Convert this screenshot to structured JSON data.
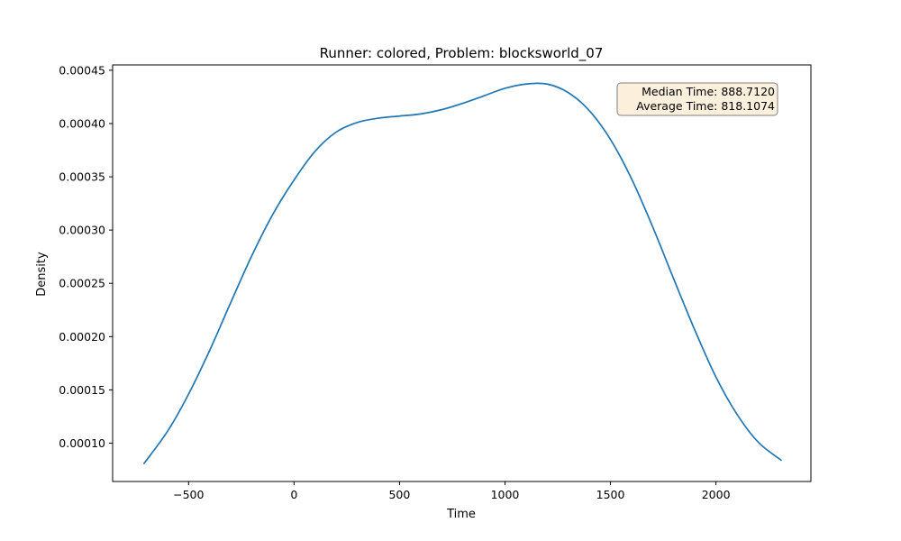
{
  "chart_data": {
    "type": "line",
    "title": "Runner: colored, Problem: blocksworld_07",
    "xlabel": "Time",
    "ylabel": "Density",
    "xlim": [
      -860,
      2450
    ],
    "ylim": [
      6.4e-05,
      0.000455
    ],
    "xticks": [
      -500,
      0,
      500,
      1000,
      1500,
      2000
    ],
    "xtick_labels": [
      "−500",
      "0",
      "500",
      "1000",
      "1500",
      "2000"
    ],
    "yticks": [
      0.0001,
      0.00015,
      0.0002,
      0.00025,
      0.0003,
      0.00035,
      0.0004,
      0.00045
    ],
    "ytick_labels": [
      "0.00010",
      "0.00015",
      "0.00020",
      "0.00025",
      "0.00030",
      "0.00035",
      "0.00040",
      "0.00045"
    ],
    "grid": false,
    "legend": "none",
    "series": [
      {
        "color": "#1f77b4",
        "x": [
          -711,
          -600,
          -500,
          -400,
          -300,
          -200,
          -100,
          0,
          100,
          200,
          300,
          400,
          500,
          600,
          700,
          800,
          900,
          1000,
          1100,
          1200,
          1300,
          1400,
          1500,
          1600,
          1700,
          1800,
          1900,
          2000,
          2100,
          2200,
          2309
        ],
        "y": [
          8.1e-05,
          0.000111,
          0.000146,
          0.000187,
          0.000232,
          0.000276,
          0.000315,
          0.000347,
          0.000374,
          0.000392,
          0.000401,
          0.000405,
          0.000407,
          0.000409,
          0.000413,
          0.000419,
          0.000426,
          0.000433,
          0.000437,
          0.000437,
          0.000429,
          0.000412,
          0.000385,
          0.000348,
          0.000303,
          0.000254,
          0.000206,
          0.000162,
          0.000127,
          0.000101,
          8.4e-05
        ]
      }
    ],
    "annotation": {
      "lines": [
        "Median Time: 888.7120",
        "Average Time: 818.1074"
      ],
      "background": "#fcf0dc",
      "border": "#7f7f7f",
      "placement": "top-right"
    }
  }
}
